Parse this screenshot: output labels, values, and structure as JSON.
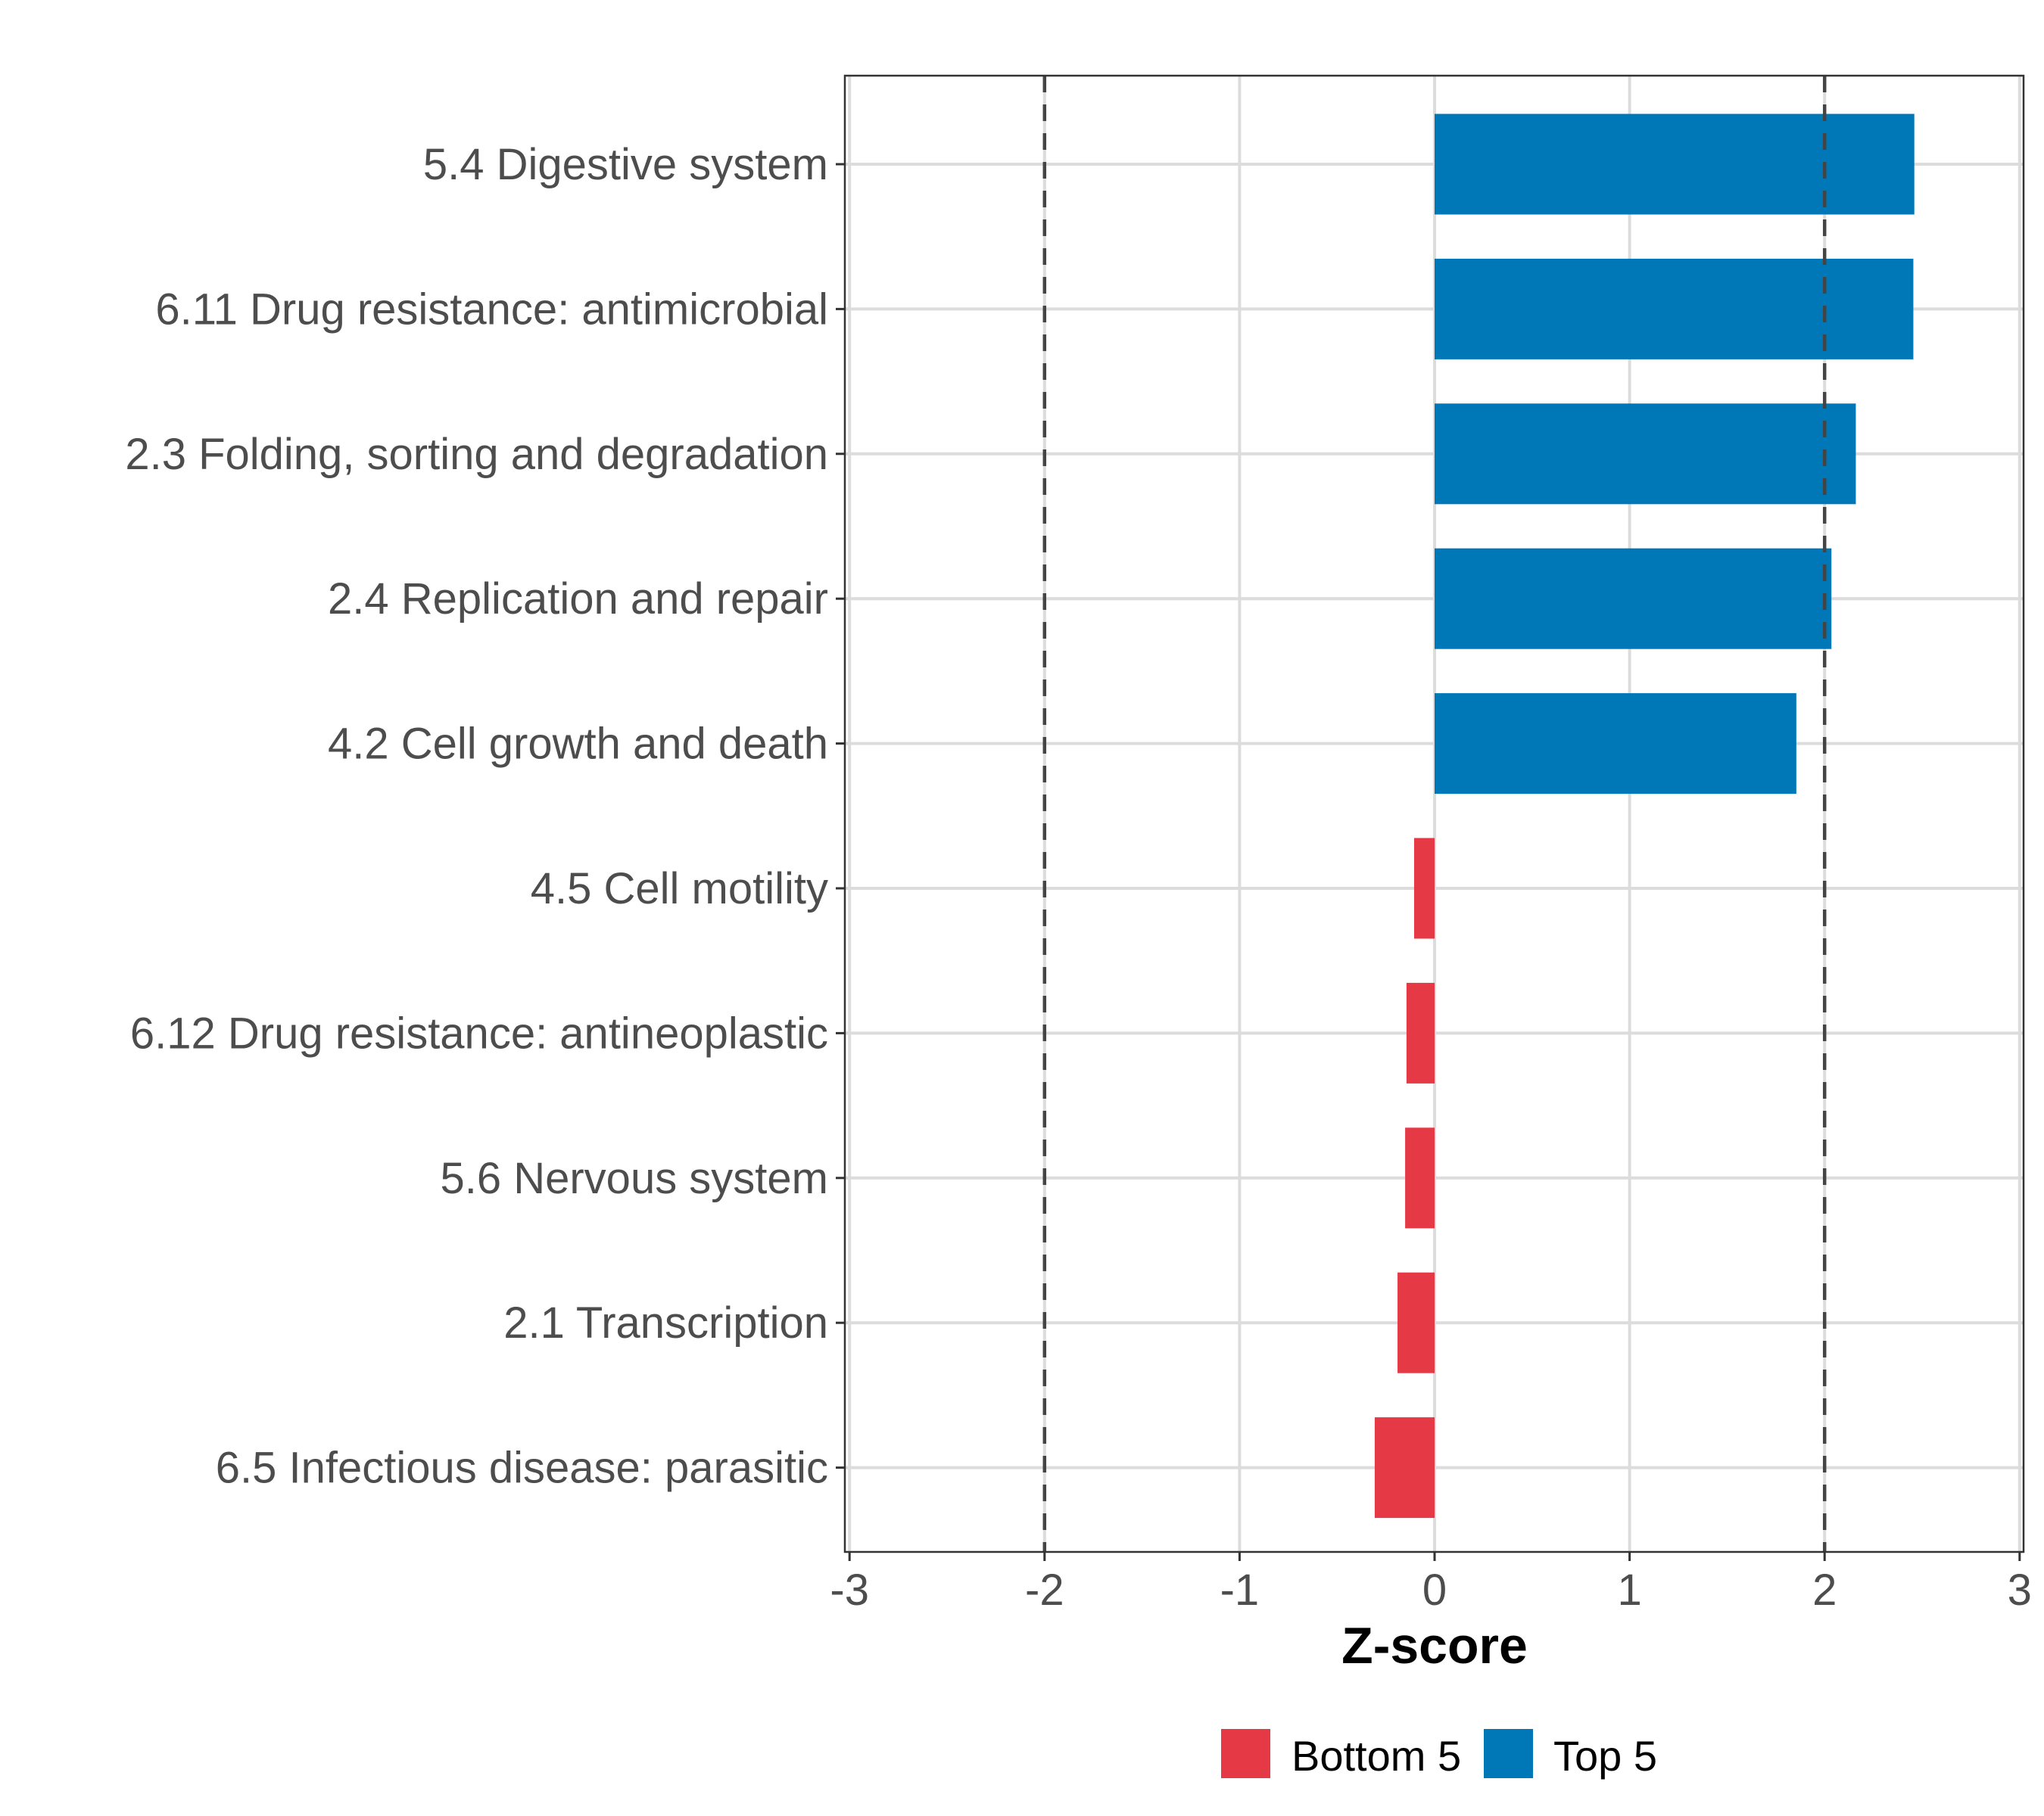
{
  "chart_data": {
    "type": "bar",
    "orientation": "horizontal",
    "title": "",
    "xlabel": "Z-score",
    "ylabel": "",
    "xlim": [
      -3,
      3
    ],
    "xticks": [
      -3,
      -2,
      -1,
      0,
      1,
      2,
      3
    ],
    "xtick_labels": [
      "-3",
      "-2",
      "-1",
      "0",
      "1",
      "2",
      "3"
    ],
    "grid": true,
    "reference_lines": [
      -2,
      2
    ],
    "categories": [
      "5.4 Digestive system",
      "6.11 Drug resistance: antimicrobial",
      "2.3 Folding, sorting and degradation",
      "2.4 Replication and repair",
      "4.2 Cell growth and death",
      "4.5 Cell motility",
      "6.12 Drug resistance: antineoplastic",
      "5.6 Nervous system",
      "2.1 Transcription",
      "6.5 Infectious disease: parasitic"
    ],
    "values": [
      2.46,
      2.455,
      2.16,
      2.035,
      1.855,
      -0.105,
      -0.144,
      -0.151,
      -0.19,
      -0.307
    ],
    "groups": [
      "Top 5",
      "Top 5",
      "Top 5",
      "Top 5",
      "Top 5",
      "Bottom 5",
      "Bottom 5",
      "Bottom 5",
      "Bottom 5",
      "Bottom 5"
    ],
    "legend": {
      "position": "bottom",
      "entries": [
        {
          "label": "Bottom 5",
          "color": "#E63946"
        },
        {
          "label": "Top 5",
          "color": "#0077B6"
        }
      ]
    },
    "colors": {
      "Top 5": "#0077B6",
      "Bottom 5": "#E63946"
    }
  }
}
